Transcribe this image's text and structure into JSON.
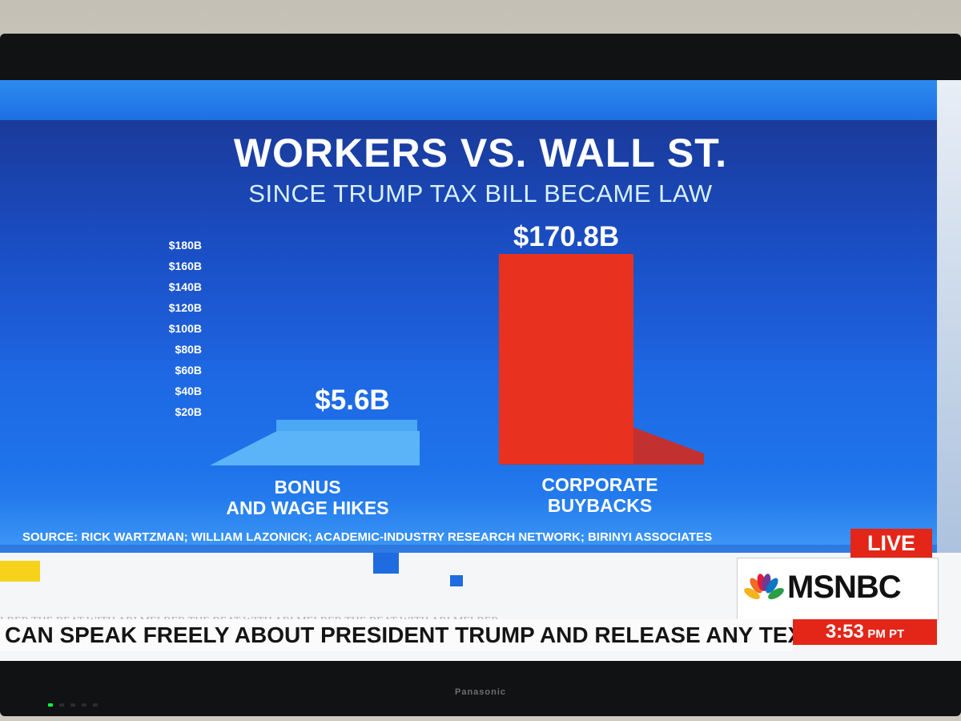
{
  "graphic": {
    "title": "WORKERS VS. WALL ST.",
    "subtitle": "SINCE TRUMP TAX BILL BECAME LAW",
    "y_ticks": [
      "$180B",
      "$160B",
      "$140B",
      "$120B",
      "$100B",
      "$80B",
      "$60B",
      "$40B",
      "$20B"
    ],
    "bars": [
      {
        "value_label": "$5.6B",
        "value": 5.6,
        "category_line1": "BONUS",
        "category_line2": "AND WAGE HIKES"
      },
      {
        "value_label": "$170.8B",
        "value": 170.8,
        "category_line1": "CORPORATE",
        "category_line2": "BUYBACKS"
      }
    ],
    "source": "SOURCE: RICK WARTZMAN; WILLIAM LAZONICK; ACADEMIC-INDUSTRY RESEARCH NETWORK; BIRINYI ASSOCIATES"
  },
  "broadcast": {
    "live_badge": "LIVE",
    "network": "MSNBC",
    "promo": "LBER    THE BEAT WITH ARI MELBER    THE BEAT WITH ARI MELBER    THE BEAT WITH ARI MELBER",
    "ticker": "CAN SPEAK FREELY ABOUT PRESIDENT TRUMP AND RELEASE ANY TEXT",
    "time": "3:53",
    "timezone": "PM PT"
  },
  "tv": {
    "brand": "Panasonic"
  },
  "colors": {
    "bar_blue": "#5bb4f7",
    "bar_red": "#e8321f",
    "msnbc_red": "#e32618",
    "bg_blue": "#1763d9"
  }
}
